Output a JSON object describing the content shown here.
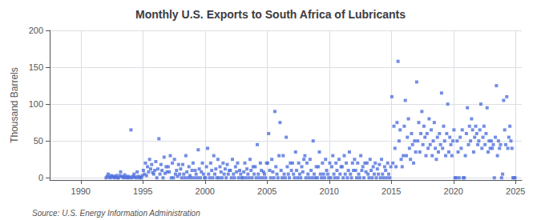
{
  "chart_data": {
    "type": "scatter",
    "title": "Monthly U.S. Exports to South Africa of Lubricants",
    "ylabel": "Thousand Barrels",
    "source": "Source: U.S. Energy Information Administration",
    "marker": "square",
    "grid": true,
    "xlim": [
      1987.5,
      2025.5
    ],
    "xticks": [
      1990,
      1995,
      2000,
      2005,
      2010,
      2015,
      2020,
      2025
    ],
    "ylim": [
      -3,
      200
    ],
    "yticks": [
      0,
      50,
      100,
      150,
      200
    ],
    "x": [
      1992.0416666667,
      1992.125,
      1992.2083333333,
      1992.2916666667,
      1992.375,
      1992.4583333333,
      1992.5416666667,
      1992.625,
      1992.7083333333,
      1992.7916666667,
      1992.875,
      1992.9583333333,
      1993.0416666667,
      1993.125,
      1993.2083333333,
      1993.2916666667,
      1993.375,
      1993.4583333333,
      1993.5416666667,
      1993.625,
      1993.7083333333,
      1993.7916666667,
      1993.875,
      1993.9583333333,
      1994.0416666667,
      1994.125,
      1994.2083333333,
      1994.2916666667,
      1994.375,
      1994.4583333333,
      1994.5416666667,
      1994.625,
      1994.7083333333,
      1994.7916666667,
      1994.875,
      1994.9583333333,
      1995.0416666667,
      1995.125,
      1995.2083333333,
      1995.2916666667,
      1995.375,
      1995.4583333333,
      1995.5416666667,
      1995.625,
      1995.7083333333,
      1995.7916666667,
      1995.875,
      1995.9583333333,
      1996.0416666667,
      1996.125,
      1996.2083333333,
      1996.2916666667,
      1996.375,
      1996.4583333333,
      1996.5416666667,
      1996.625,
      1996.7083333333,
      1996.7916666667,
      1996.875,
      1996.9583333333,
      1997.0416666667,
      1997.125,
      1997.2083333333,
      1997.2916666667,
      1997.375,
      1997.4583333333,
      1997.5416666667,
      1997.625,
      1997.7083333333,
      1997.7916666667,
      1997.875,
      1997.9583333333,
      1998.0416666667,
      1998.125,
      1998.2083333333,
      1998.2916666667,
      1998.375,
      1998.4583333333,
      1998.5416666667,
      1998.625,
      1998.7083333333,
      1998.7916666667,
      1998.875,
      1998.9583333333,
      1999.0416666667,
      1999.125,
      1999.2083333333,
      1999.2916666667,
      1999.375,
      1999.4583333333,
      1999.5416666667,
      1999.625,
      1999.7083333333,
      1999.7916666667,
      1999.875,
      1999.9583333333,
      2000.0416666667,
      2000.125,
      2000.2083333333,
      2000.2916666667,
      2000.375,
      2000.4583333333,
      2000.5416666667,
      2000.625,
      2000.7083333333,
      2000.7916666667,
      2000.875,
      2000.9583333333,
      2001.0416666667,
      2001.125,
      2001.2083333333,
      2001.2916666667,
      2001.375,
      2001.4583333333,
      2001.5416666667,
      2001.625,
      2001.7083333333,
      2001.7916666667,
      2001.875,
      2001.9583333333,
      2002.0416666667,
      2002.125,
      2002.2083333333,
      2002.2916666667,
      2002.375,
      2002.4583333333,
      2002.5416666667,
      2002.625,
      2002.7083333333,
      2002.7916666667,
      2002.875,
      2002.9583333333,
      2003.0416666667,
      2003.125,
      2003.2083333333,
      2003.2916666667,
      2003.375,
      2003.4583333333,
      2003.5416666667,
      2003.625,
      2003.7083333333,
      2003.7916666667,
      2003.875,
      2003.9583333333,
      2004.0416666667,
      2004.125,
      2004.2083333333,
      2004.2916666667,
      2004.375,
      2004.4583333333,
      2004.5416666667,
      2004.625,
      2004.7083333333,
      2004.7916666667,
      2004.875,
      2004.9583333333,
      2005.0416666667,
      2005.125,
      2005.2083333333,
      2005.2916666667,
      2005.375,
      2005.4583333333,
      2005.5416666667,
      2005.625,
      2005.7083333333,
      2005.7916666667,
      2005.875,
      2005.9583333333,
      2006.0416666667,
      2006.125,
      2006.2083333333,
      2006.2916666667,
      2006.375,
      2006.4583333333,
      2006.5416666667,
      2006.625,
      2006.7083333333,
      2006.7916666667,
      2006.875,
      2006.9583333333,
      2007.0416666667,
      2007.125,
      2007.2083333333,
      2007.2916666667,
      2007.375,
      2007.4583333333,
      2007.5416666667,
      2007.625,
      2007.7083333333,
      2007.7916666667,
      2007.875,
      2007.9583333333,
      2008.0416666667,
      2008.125,
      2008.2083333333,
      2008.2916666667,
      2008.375,
      2008.4583333333,
      2008.5416666667,
      2008.625,
      2008.7083333333,
      2008.7916666667,
      2008.875,
      2008.9583333333,
      2009.0416666667,
      2009.125,
      2009.2083333333,
      2009.2916666667,
      2009.375,
      2009.4583333333,
      2009.5416666667,
      2009.625,
      2009.7083333333,
      2009.7916666667,
      2009.875,
      2009.9583333333,
      2010.0416666667,
      2010.125,
      2010.2083333333,
      2010.2916666667,
      2010.375,
      2010.4583333333,
      2010.5416666667,
      2010.625,
      2010.7083333333,
      2010.7916666667,
      2010.875,
      2010.9583333333,
      2011.0416666667,
      2011.125,
      2011.2083333333,
      2011.2916666667,
      2011.375,
      2011.4583333333,
      2011.5416666667,
      2011.625,
      2011.7083333333,
      2011.7916666667,
      2011.875,
      2011.9583333333,
      2012.0416666667,
      2012.125,
      2012.2083333333,
      2012.2916666667,
      2012.375,
      2012.4583333333,
      2012.5416666667,
      2012.625,
      2012.7083333333,
      2012.7916666667,
      2012.875,
      2012.9583333333,
      2013.0416666667,
      2013.125,
      2013.2083333333,
      2013.2916666667,
      2013.375,
      2013.4583333333,
      2013.5416666667,
      2013.625,
      2013.7083333333,
      2013.7916666667,
      2013.875,
      2013.9583333333,
      2014.0416666667,
      2014.125,
      2014.2083333333,
      2014.2916666667,
      2014.375,
      2014.4583333333,
      2014.5416666667,
      2014.625,
      2014.7083333333,
      2014.7916666667,
      2014.875,
      2014.9583333333,
      2015.0416666667,
      2015.125,
      2015.2083333333,
      2015.2916666667,
      2015.375,
      2015.4583333333,
      2015.5416666667,
      2015.625,
      2015.7083333333,
      2015.7916666667,
      2015.875,
      2015.9583333333,
      2016.0416666667,
      2016.125,
      2016.2083333333,
      2016.2916666667,
      2016.375,
      2016.4583333333,
      2016.5416666667,
      2016.625,
      2016.7083333333,
      2016.7916666667,
      2016.875,
      2016.9583333333,
      2017.0416666667,
      2017.125,
      2017.2083333333,
      2017.2916666667,
      2017.375,
      2017.4583333333,
      2017.5416666667,
      2017.625,
      2017.7083333333,
      2017.7916666667,
      2017.875,
      2017.9583333333,
      2018.0416666667,
      2018.125,
      2018.2083333333,
      2018.2916666667,
      2018.375,
      2018.4583333333,
      2018.5416666667,
      2018.625,
      2018.7083333333,
      2018.7916666667,
      2018.875,
      2018.9583333333,
      2019.0416666667,
      2019.125,
      2019.2083333333,
      2019.2916666667,
      2019.375,
      2019.4583333333,
      2019.5416666667,
      2019.625,
      2019.7083333333,
      2019.7916666667,
      2019.875,
      2019.9583333333,
      2020.0416666667,
      2020.125,
      2020.2083333333,
      2020.2916666667,
      2020.375,
      2020.4583333333,
      2020.5416666667,
      2020.625,
      2020.7083333333,
      2020.7916666667,
      2020.875,
      2020.9583333333,
      2021.0416666667,
      2021.125,
      2021.2083333333,
      2021.2916666667,
      2021.375,
      2021.4583333333,
      2021.5416666667,
      2021.625,
      2021.7083333333,
      2021.7916666667,
      2021.875,
      2021.9583333333,
      2022.0416666667,
      2022.125,
      2022.2083333333,
      2022.2916666667,
      2022.375,
      2022.4583333333,
      2022.5416666667,
      2022.625,
      2022.7083333333,
      2022.7916666667,
      2022.875,
      2022.9583333333,
      2023.0416666667,
      2023.125,
      2023.2083333333,
      2023.2916666667,
      2023.375,
      2023.4583333333,
      2023.5416666667,
      2023.625,
      2023.7083333333,
      2023.7916666667,
      2023.875,
      2023.9583333333,
      2024.0416666667,
      2024.125,
      2024.2083333333,
      2024.2916666667,
      2024.375,
      2024.4583333333,
      2024.5416666667,
      2024.625,
      2024.7083333333,
      2024.7916666667,
      2024.875,
      2024.9583333333
    ],
    "values": [
      0,
      2,
      5,
      1,
      0,
      3,
      1,
      2,
      0,
      1,
      3,
      0,
      0,
      3,
      8,
      2,
      1,
      0,
      4,
      1,
      0,
      2,
      0,
      1,
      65,
      0,
      2,
      5,
      1,
      0,
      8,
      2,
      0,
      1,
      0,
      3,
      10,
      5,
      20,
      3,
      15,
      8,
      25,
      12,
      18,
      7,
      5,
      10,
      22,
      0,
      12,
      53,
      5,
      18,
      10,
      0,
      28,
      6,
      15,
      8,
      15,
      8,
      30,
      0,
      20,
      0,
      25,
      5,
      10,
      2,
      18,
      5,
      12,
      0,
      18,
      5,
      0,
      30,
      8,
      0,
      15,
      3,
      0,
      10,
      20,
      0,
      10,
      5,
      0,
      38,
      12,
      0,
      8,
      20,
      5,
      0,
      0,
      15,
      40,
      5,
      0,
      20,
      10,
      0,
      30,
      5,
      12,
      0,
      25,
      0,
      15,
      8,
      0,
      20,
      5,
      12,
      0,
      18,
      5,
      10,
      10,
      0,
      25,
      5,
      0,
      15,
      8,
      20,
      0,
      10,
      5,
      0,
      0,
      8,
      20,
      0,
      12,
      5,
      0,
      25,
      10,
      0,
      15,
      5,
      15,
      0,
      45,
      5,
      0,
      20,
      10,
      0,
      8,
      5,
      0,
      20,
      20,
      60,
      10,
      0,
      25,
      8,
      0,
      90,
      15,
      5,
      0,
      30,
      75,
      10,
      0,
      30,
      5,
      0,
      55,
      15,
      5,
      0,
      20,
      10,
      20,
      5,
      0,
      35,
      10,
      0,
      20,
      5,
      0,
      15,
      8,
      25,
      30,
      0,
      20,
      5,
      0,
      25,
      10,
      0,
      50,
      5,
      0,
      15,
      0,
      15,
      35,
      5,
      0,
      20,
      5,
      0,
      25,
      10,
      5,
      0,
      20,
      0,
      15,
      30,
      5,
      0,
      20,
      10,
      0,
      25,
      5,
      15,
      15,
      0,
      30,
      5,
      20,
      0,
      10,
      35,
      5,
      0,
      20,
      10,
      25,
      10,
      0,
      20,
      5,
      0,
      30,
      10,
      15,
      0,
      20,
      8,
      20,
      5,
      0,
      25,
      10,
      0,
      15,
      5,
      20,
      0,
      12,
      5,
      18,
      0,
      25,
      5,
      0,
      15,
      10,
      0,
      20,
      5,
      0,
      15,
      110,
      20,
      70,
      40,
      15,
      75,
      158,
      50,
      65,
      25,
      15,
      30,
      70,
      105,
      30,
      55,
      80,
      40,
      25,
      60,
      45,
      20,
      50,
      35,
      130,
      50,
      75,
      35,
      60,
      90,
      45,
      70,
      55,
      30,
      60,
      40,
      80,
      45,
      65,
      30,
      50,
      75,
      40,
      25,
      55,
      35,
      60,
      45,
      115,
      40,
      70,
      50,
      30,
      60,
      100,
      35,
      55,
      45,
      30,
      50,
      65,
      0,
      0,
      50,
      35,
      0,
      55,
      40,
      65,
      0,
      0,
      30,
      60,
      95,
      45,
      70,
      50,
      80,
      65,
      35,
      55,
      70,
      60,
      45,
      50,
      65,
      100,
      40,
      55,
      70,
      45,
      60,
      95,
      35,
      50,
      40,
      50,
      40,
      45,
      0,
      55,
      125,
      30,
      50,
      40,
      45,
      0,
      5,
      105,
      65,
      45,
      110,
      40,
      55,
      70,
      50,
      40,
      0,
      0,
      0
    ]
  }
}
